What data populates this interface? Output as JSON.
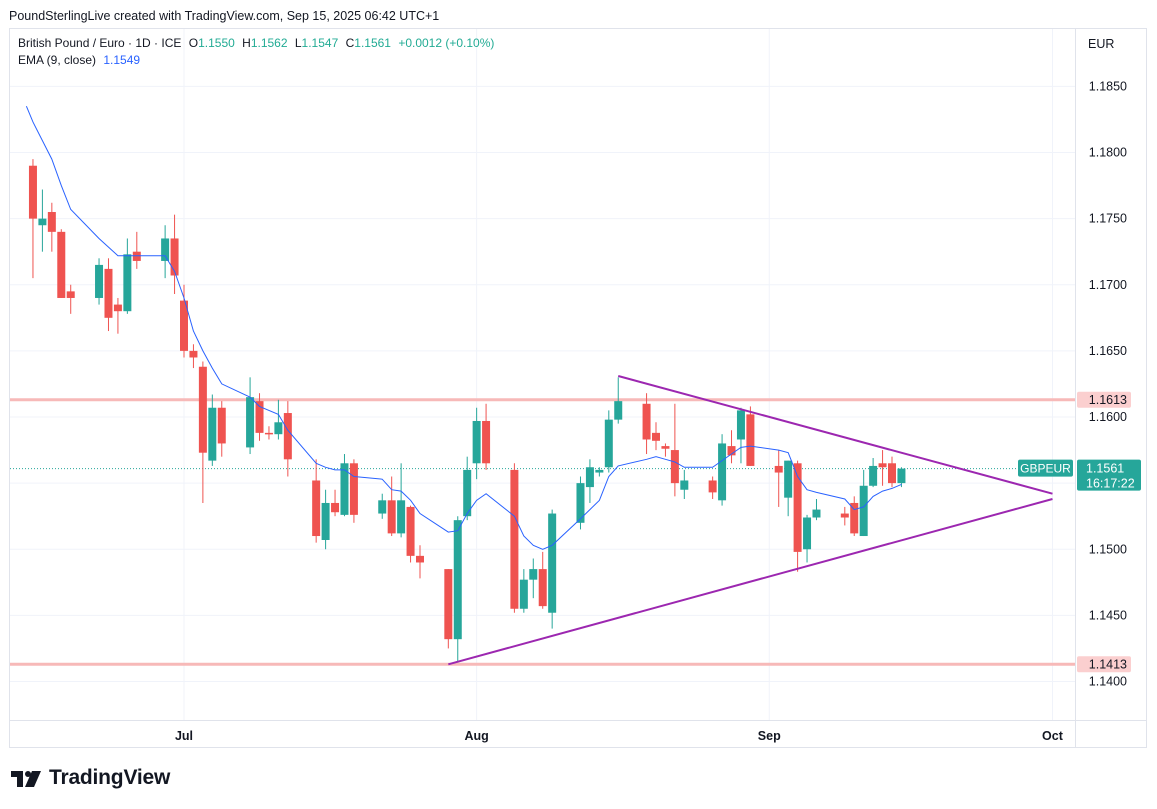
{
  "header": {
    "attribution": "PoundSterlingLive created with TradingView.com, Sep 15, 2025 06:42 UTC+1"
  },
  "legend": {
    "symbol": "British Pound / Euro · 1D · ICE",
    "o_label": "O",
    "o_value": "1.1550",
    "h_label": "H",
    "h_value": "1.1562",
    "l_label": "L",
    "l_value": "1.1547",
    "c_label": "C",
    "c_value": "1.1561",
    "change": "+0.0012 (+0.10%)",
    "ema_label": "EMA (9, close)",
    "ema_value": "1.1549"
  },
  "price_scale": {
    "currency": "EUR",
    "ticks": [
      "1.1850",
      "1.1800",
      "1.1750",
      "1.1700",
      "1.1650",
      "1.1600",
      "1.1500",
      "1.1450",
      "1.1400"
    ],
    "last_label": "GBPEUR",
    "last_price": "1.1561",
    "countdown": "16:17:22"
  },
  "time_scale": {
    "labels": [
      {
        "text": "Jul",
        "day": 0
      },
      {
        "text": "Aug",
        "day": 31
      },
      {
        "text": "Sep",
        "day": 62
      },
      {
        "text": "Oct",
        "day": 92
      }
    ]
  },
  "footer": {
    "brand": "TradingView"
  },
  "colors": {
    "up": "#26a69a",
    "down": "#ef5350",
    "ema": "#2962ff",
    "triangle": "#9c27b0",
    "hline": "#f7b9b8",
    "hline_label_bg": "#fbcfcf"
  },
  "chart_data": {
    "type": "candlestick",
    "x_unit": "days since Jul 1, 2025",
    "ylim": [
      1.1375,
      1.1875
    ],
    "grid": true,
    "candles": [
      {
        "d": -16,
        "o": 1.179,
        "h": 1.1795,
        "l": 1.1705,
        "c": 1.175
      },
      {
        "d": -15,
        "o": 1.1745,
        "h": 1.1772,
        "l": 1.1725,
        "c": 1.175
      },
      {
        "d": -14,
        "o": 1.1755,
        "h": 1.1762,
        "l": 1.1725,
        "c": 1.174
      },
      {
        "d": -13,
        "o": 1.174,
        "h": 1.1742,
        "l": 1.169,
        "c": 1.169
      },
      {
        "d": -12,
        "o": 1.1695,
        "h": 1.17,
        "l": 1.1678,
        "c": 1.169
      },
      {
        "d": -9,
        "o": 1.169,
        "h": 1.172,
        "l": 1.1685,
        "c": 1.1715
      },
      {
        "d": -8,
        "o": 1.1712,
        "h": 1.172,
        "l": 1.1665,
        "c": 1.1675
      },
      {
        "d": -7,
        "o": 1.1685,
        "h": 1.169,
        "l": 1.1663,
        "c": 1.168
      },
      {
        "d": -6,
        "o": 1.168,
        "h": 1.1735,
        "l": 1.1678,
        "c": 1.1723
      },
      {
        "d": -5,
        "o": 1.1725,
        "h": 1.174,
        "l": 1.1712,
        "c": 1.1718
      },
      {
        "d": -2,
        "o": 1.1718,
        "h": 1.1745,
        "l": 1.1705,
        "c": 1.1735
      },
      {
        "d": -1,
        "o": 1.1735,
        "h": 1.1753,
        "l": 1.1693,
        "c": 1.1707
      },
      {
        "d": 0,
        "o": 1.1688,
        "h": 1.17,
        "l": 1.1645,
        "c": 1.165
      },
      {
        "d": 1,
        "o": 1.165,
        "h": 1.1655,
        "l": 1.1637,
        "c": 1.1645
      },
      {
        "d": 2,
        "o": 1.1638,
        "h": 1.1642,
        "l": 1.1535,
        "c": 1.1573
      },
      {
        "d": 3,
        "o": 1.1567,
        "h": 1.1617,
        "l": 1.1563,
        "c": 1.1607
      },
      {
        "d": 4,
        "o": 1.1607,
        "h": 1.1612,
        "l": 1.157,
        "c": 1.158
      },
      {
        "d": 7,
        "o": 1.1577,
        "h": 1.163,
        "l": 1.1572,
        "c": 1.1615
      },
      {
        "d": 8,
        "o": 1.1612,
        "h": 1.1618,
        "l": 1.1582,
        "c": 1.1588
      },
      {
        "d": 9,
        "o": 1.1588,
        "h": 1.1593,
        "l": 1.1583,
        "c": 1.1587
      },
      {
        "d": 10,
        "o": 1.1587,
        "h": 1.1613,
        "l": 1.1583,
        "c": 1.1596
      },
      {
        "d": 11,
        "o": 1.1603,
        "h": 1.1612,
        "l": 1.1555,
        "c": 1.1568
      },
      {
        "d": 14,
        "o": 1.1552,
        "h": 1.1568,
        "l": 1.1505,
        "c": 1.151
      },
      {
        "d": 15,
        "o": 1.1507,
        "h": 1.1545,
        "l": 1.15,
        "c": 1.1535
      },
      {
        "d": 16,
        "o": 1.1535,
        "h": 1.1545,
        "l": 1.1525,
        "c": 1.1528
      },
      {
        "d": 17,
        "o": 1.1526,
        "h": 1.1572,
        "l": 1.1525,
        "c": 1.1565
      },
      {
        "d": 18,
        "o": 1.1565,
        "h": 1.1568,
        "l": 1.152,
        "c": 1.1526
      },
      {
        "d": 21,
        "o": 1.1527,
        "h": 1.1542,
        "l": 1.1523,
        "c": 1.1537
      },
      {
        "d": 22,
        "o": 1.1537,
        "h": 1.1555,
        "l": 1.151,
        "c": 1.1512
      },
      {
        "d": 23,
        "o": 1.1512,
        "h": 1.1565,
        "l": 1.1509,
        "c": 1.1537
      },
      {
        "d": 24,
        "o": 1.1532,
        "h": 1.1533,
        "l": 1.149,
        "c": 1.1495
      },
      {
        "d": 25,
        "o": 1.1495,
        "h": 1.1503,
        "l": 1.1478,
        "c": 1.149
      },
      {
        "d": 28,
        "o": 1.1485,
        "h": 1.1485,
        "l": 1.1425,
        "c": 1.1432
      },
      {
        "d": 29,
        "o": 1.1432,
        "h": 1.1525,
        "l": 1.1415,
        "c": 1.1522
      },
      {
        "d": 30,
        "o": 1.1525,
        "h": 1.157,
        "l": 1.1522,
        "c": 1.156
      },
      {
        "d": 31,
        "o": 1.1565,
        "h": 1.1607,
        "l": 1.1553,
        "c": 1.1597
      },
      {
        "d": 32,
        "o": 1.1597,
        "h": 1.161,
        "l": 1.156,
        "c": 1.1565
      },
      {
        "d": 35,
        "o": 1.156,
        "h": 1.1565,
        "l": 1.1452,
        "c": 1.1455
      },
      {
        "d": 36,
        "o": 1.1455,
        "h": 1.1485,
        "l": 1.1452,
        "c": 1.1477
      },
      {
        "d": 37,
        "o": 1.1477,
        "h": 1.1493,
        "l": 1.1463,
        "c": 1.1485
      },
      {
        "d": 38,
        "o": 1.1485,
        "h": 1.1498,
        "l": 1.1455,
        "c": 1.1457
      },
      {
        "d": 39,
        "o": 1.1452,
        "h": 1.153,
        "l": 1.144,
        "c": 1.1527
      },
      {
        "d": 42,
        "o": 1.152,
        "h": 1.1555,
        "l": 1.1515,
        "c": 1.155
      },
      {
        "d": 43,
        "o": 1.1547,
        "h": 1.1568,
        "l": 1.1535,
        "c": 1.1562
      },
      {
        "d": 44,
        "o": 1.1558,
        "h": 1.1562,
        "l": 1.1555,
        "c": 1.156
      },
      {
        "d": 45,
        "o": 1.1562,
        "h": 1.1605,
        "l": 1.1558,
        "c": 1.1598
      },
      {
        "d": 46,
        "o": 1.1598,
        "h": 1.163,
        "l": 1.1595,
        "c": 1.1612
      },
      {
        "d": 49,
        "o": 1.161,
        "h": 1.1618,
        "l": 1.1572,
        "c": 1.1583
      },
      {
        "d": 50,
        "o": 1.1588,
        "h": 1.1596,
        "l": 1.1575,
        "c": 1.1582
      },
      {
        "d": 51,
        "o": 1.1578,
        "h": 1.158,
        "l": 1.157,
        "c": 1.1576
      },
      {
        "d": 52,
        "o": 1.1575,
        "h": 1.161,
        "l": 1.154,
        "c": 1.155
      },
      {
        "d": 53,
        "o": 1.1545,
        "h": 1.156,
        "l": 1.1538,
        "c": 1.1552
      },
      {
        "d": 56,
        "o": 1.1552,
        "h": 1.1555,
        "l": 1.1538,
        "c": 1.1543
      },
      {
        "d": 57,
        "o": 1.1537,
        "h": 1.1587,
        "l": 1.1533,
        "c": 1.158
      },
      {
        "d": 58,
        "o": 1.1578,
        "h": 1.159,
        "l": 1.1565,
        "c": 1.1571
      },
      {
        "d": 59,
        "o": 1.1583,
        "h": 1.1607,
        "l": 1.1565,
        "c": 1.1605
      },
      {
        "d": 60,
        "o": 1.1602,
        "h": 1.1608,
        "l": 1.1563,
        "c": 1.1563
      },
      {
        "d": 63,
        "o": 1.1563,
        "h": 1.1575,
        "l": 1.1532,
        "c": 1.1558
      },
      {
        "d": 64,
        "o": 1.1539,
        "h": 1.1567,
        "l": 1.1525,
        "c": 1.1567
      },
      {
        "d": 65,
        "o": 1.1565,
        "h": 1.1567,
        "l": 1.1483,
        "c": 1.1498
      },
      {
        "d": 66,
        "o": 1.15,
        "h": 1.1526,
        "l": 1.149,
        "c": 1.1524
      },
      {
        "d": 67,
        "o": 1.1524,
        "h": 1.1538,
        "l": 1.1522,
        "c": 1.153
      },
      {
        "d": 70,
        "o": 1.1527,
        "h": 1.1532,
        "l": 1.1518,
        "c": 1.1524
      },
      {
        "d": 71,
        "o": 1.1535,
        "h": 1.154,
        "l": 1.151,
        "c": 1.1512
      },
      {
        "d": 72,
        "o": 1.151,
        "h": 1.156,
        "l": 1.151,
        "c": 1.1548
      },
      {
        "d": 73,
        "o": 1.1548,
        "h": 1.1569,
        "l": 1.1547,
        "c": 1.1563
      },
      {
        "d": 74,
        "o": 1.1565,
        "h": 1.1575,
        "l": 1.1548,
        "c": 1.1562
      },
      {
        "d": 75,
        "o": 1.1565,
        "h": 1.157,
        "l": 1.1547,
        "c": 1.155
      },
      {
        "d": 76,
        "o": 1.155,
        "h": 1.1562,
        "l": 1.1547,
        "c": 1.1561
      }
    ],
    "ema_9": [
      {
        "d": -16.7,
        "v": 1.1835
      },
      {
        "d": -16,
        "v": 1.1823
      },
      {
        "d": -14,
        "v": 1.1795
      },
      {
        "d": -13,
        "v": 1.1775
      },
      {
        "d": -12,
        "v": 1.1757
      },
      {
        "d": -9,
        "v": 1.1735
      },
      {
        "d": -7,
        "v": 1.1722
      },
      {
        "d": -6,
        "v": 1.1722
      },
      {
        "d": -5,
        "v": 1.1722
      },
      {
        "d": -2,
        "v": 1.1722
      },
      {
        "d": -1,
        "v": 1.171
      },
      {
        "d": 0,
        "v": 1.169
      },
      {
        "d": 1,
        "v": 1.1665
      },
      {
        "d": 2,
        "v": 1.165
      },
      {
        "d": 3,
        "v": 1.1637
      },
      {
        "d": 4,
        "v": 1.1625
      },
      {
        "d": 7,
        "v": 1.1615
      },
      {
        "d": 8,
        "v": 1.1608
      },
      {
        "d": 10,
        "v": 1.1602
      },
      {
        "d": 11,
        "v": 1.159
      },
      {
        "d": 14,
        "v": 1.1565
      },
      {
        "d": 15,
        "v": 1.1562
      },
      {
        "d": 16,
        "v": 1.156
      },
      {
        "d": 17,
        "v": 1.156
      },
      {
        "d": 18,
        "v": 1.1555
      },
      {
        "d": 21,
        "v": 1.1553
      },
      {
        "d": 22,
        "v": 1.1545
      },
      {
        "d": 23,
        "v": 1.1544
      },
      {
        "d": 24,
        "v": 1.1537
      },
      {
        "d": 25,
        "v": 1.1527
      },
      {
        "d": 28,
        "v": 1.1513
      },
      {
        "d": 29,
        "v": 1.1514
      },
      {
        "d": 30,
        "v": 1.1527
      },
      {
        "d": 31,
        "v": 1.1537
      },
      {
        "d": 32,
        "v": 1.1542
      },
      {
        "d": 35,
        "v": 1.1525
      },
      {
        "d": 36,
        "v": 1.151
      },
      {
        "d": 37,
        "v": 1.1503
      },
      {
        "d": 38,
        "v": 1.15
      },
      {
        "d": 39,
        "v": 1.1503
      },
      {
        "d": 42,
        "v": 1.1523
      },
      {
        "d": 43,
        "v": 1.153
      },
      {
        "d": 44,
        "v": 1.1537
      },
      {
        "d": 45,
        "v": 1.1555
      },
      {
        "d": 46,
        "v": 1.1563
      },
      {
        "d": 49,
        "v": 1.1568
      },
      {
        "d": 50,
        "v": 1.157
      },
      {
        "d": 51,
        "v": 1.1568
      },
      {
        "d": 52,
        "v": 1.1566
      },
      {
        "d": 53,
        "v": 1.1562
      },
      {
        "d": 56,
        "v": 1.1562
      },
      {
        "d": 57,
        "v": 1.1567
      },
      {
        "d": 58,
        "v": 1.1572
      },
      {
        "d": 59,
        "v": 1.1577
      },
      {
        "d": 60,
        "v": 1.1578
      },
      {
        "d": 63,
        "v": 1.1575
      },
      {
        "d": 64,
        "v": 1.1573
      },
      {
        "d": 65,
        "v": 1.1555
      },
      {
        "d": 66,
        "v": 1.1545
      },
      {
        "d": 67,
        "v": 1.1543
      },
      {
        "d": 70,
        "v": 1.1538
      },
      {
        "d": 71,
        "v": 1.153
      },
      {
        "d": 72,
        "v": 1.1532
      },
      {
        "d": 73,
        "v": 1.154
      },
      {
        "d": 74,
        "v": 1.1544
      },
      {
        "d": 75,
        "v": 1.1546
      },
      {
        "d": 76,
        "v": 1.1549
      }
    ],
    "horizontal_lines": [
      {
        "value": 1.1613,
        "label": "1.1613"
      },
      {
        "value": 1.1413,
        "label": "1.1413"
      }
    ],
    "triangle": {
      "upper": [
        {
          "d": 46,
          "v": 1.1631
        },
        {
          "d": 92,
          "v": 1.1542
        }
      ],
      "lower": [
        {
          "d": 28,
          "v": 1.1413
        },
        {
          "d": 92,
          "v": 1.1538
        }
      ]
    },
    "last_price": 1.1561
  }
}
